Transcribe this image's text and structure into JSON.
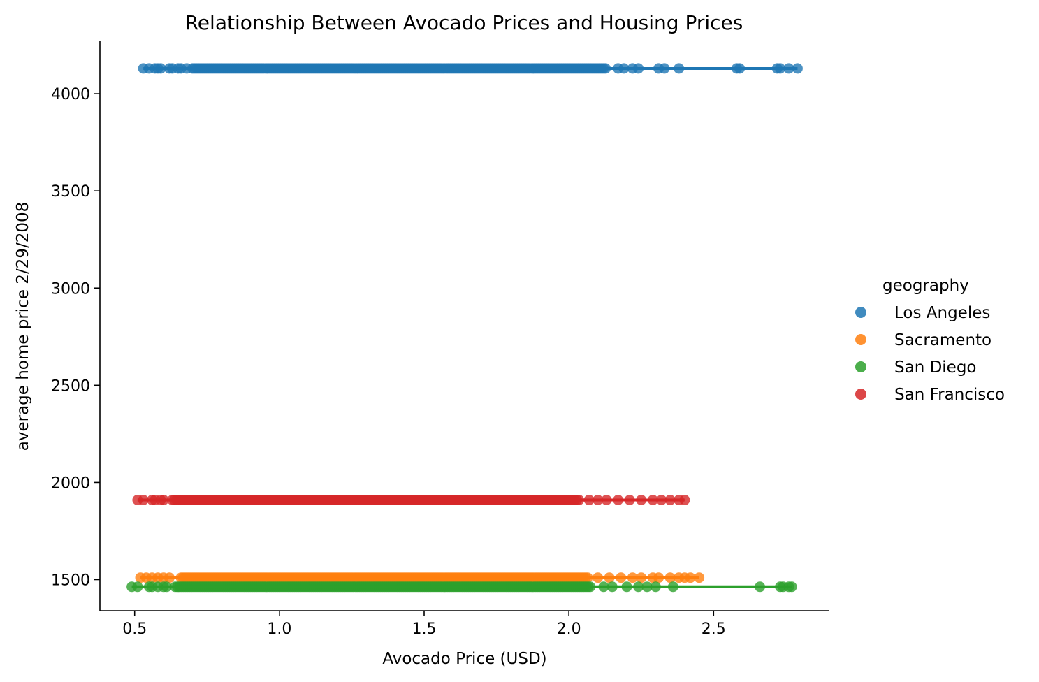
{
  "chart_data": {
    "type": "scatter",
    "title": "Relationship Between Avocado Prices and Housing Prices",
    "xlabel": "Avocado Price (USD)",
    "ylabel": "average home price 2/29/2008",
    "xlim": [
      0.38,
      2.9
    ],
    "ylim": [
      1340,
      4270
    ],
    "xticks": [
      0.5,
      1.0,
      1.5,
      2.0,
      2.5
    ],
    "xtick_labels": [
      "0.5",
      "1.0",
      "1.5",
      "2.0",
      "2.5"
    ],
    "yticks": [
      1500,
      2000,
      2500,
      3000,
      3500,
      4000
    ],
    "ytick_labels": [
      "1500",
      "2000",
      "2500",
      "3000",
      "3500",
      "4000"
    ],
    "grid": false,
    "legend": {
      "title": "geography",
      "placement": "right"
    },
    "regression_lines": true,
    "series": [
      {
        "name": "Los Angeles",
        "color": "#1f77b4",
        "y": 4130,
        "x_dense_range": [
          0.7,
          2.13
        ],
        "x_extra": [
          0.53,
          0.55,
          0.57,
          0.58,
          0.59,
          0.62,
          0.63,
          0.65,
          0.66,
          0.68,
          2.17,
          2.19,
          2.22,
          2.24,
          2.31,
          2.33,
          2.38,
          2.58,
          2.59,
          2.72,
          2.73,
          2.76,
          2.79
        ],
        "line_x": [
          0.53,
          2.79
        ]
      },
      {
        "name": "Sacramento",
        "color": "#ff7f0e",
        "y": 1510,
        "x_dense_range": [
          0.66,
          2.07
        ],
        "x_extra": [
          0.52,
          0.54,
          0.56,
          0.58,
          0.6,
          0.62,
          2.1,
          2.14,
          2.18,
          2.22,
          2.25,
          2.29,
          2.31,
          2.35,
          2.38,
          2.4,
          2.42,
          2.45
        ],
        "line_x": [
          0.52,
          2.45
        ]
      },
      {
        "name": "San Diego",
        "color": "#2ca02c",
        "y": 1463,
        "x_dense_range": [
          0.64,
          2.08
        ],
        "x_extra": [
          0.49,
          0.51,
          0.55,
          0.56,
          0.58,
          0.6,
          0.61,
          2.12,
          2.15,
          2.2,
          2.24,
          2.27,
          2.3,
          2.36,
          2.66,
          2.73,
          2.74,
          2.76,
          2.77
        ],
        "line_x": [
          0.49,
          2.77
        ]
      },
      {
        "name": "San Francisco",
        "color": "#d62728",
        "y": 1910,
        "x_dense_range": [
          0.63,
          2.04
        ],
        "x_extra": [
          0.51,
          0.53,
          0.56,
          0.57,
          0.59,
          0.6,
          2.07,
          2.1,
          2.13,
          2.17,
          2.21,
          2.25,
          2.29,
          2.32,
          2.35,
          2.38,
          2.4
        ],
        "line_x": [
          0.51,
          2.4
        ]
      }
    ]
  }
}
